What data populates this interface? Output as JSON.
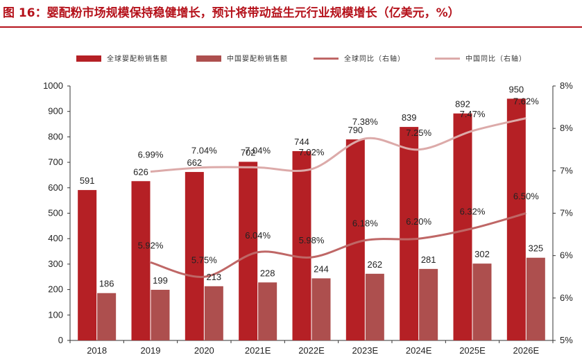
{
  "title": "图 16：婴配粉市场规模保持稳健增长，预计将带动益生元行业规模增长（亿美元，%）",
  "colors": {
    "title": "#b5121b",
    "global_sales": "#b52025",
    "china_sales": "#ad4f4e",
    "global_yoy": "#bf6766",
    "china_yoy": "#dcaaa9",
    "axis": "#333333"
  },
  "chart_data": {
    "type": "bar",
    "categories": [
      "2018",
      "2019",
      "2020",
      "2021E",
      "2022E",
      "2023E",
      "2024E",
      "2025E",
      "2026E"
    ],
    "series": [
      {
        "name": "全球婴配粉销售额",
        "type": "bar",
        "axis": "left",
        "values": [
          591,
          626,
          662,
          702,
          744,
          790,
          839,
          892,
          950
        ]
      },
      {
        "name": "中国婴配粉销售额",
        "type": "bar",
        "axis": "left",
        "values": [
          186,
          199,
          213,
          228,
          244,
          262,
          281,
          302,
          325
        ]
      },
      {
        "name": "全球同比（右轴）",
        "type": "line",
        "axis": "right",
        "values": [
          null,
          5.92,
          5.75,
          6.04,
          5.98,
          6.18,
          6.2,
          6.32,
          6.5
        ],
        "labels": [
          null,
          "5.92%",
          "5.75%",
          "6.04%",
          "5.98%",
          "6.18%",
          "6.20%",
          "6.32%",
          "6.50%"
        ]
      },
      {
        "name": "中国同比（右轴）",
        "type": "line",
        "axis": "right",
        "values": [
          null,
          6.99,
          7.04,
          7.04,
          7.02,
          7.38,
          7.25,
          7.47,
          7.62
        ],
        "labels": [
          null,
          "6.99%",
          "7.04%",
          "7.04%",
          "7.02%",
          "7.38%",
          "7.25%",
          "7.47%",
          "7.62%"
        ]
      }
    ],
    "left_axis": {
      "ylim": [
        0,
        1000
      ],
      "ticks": [
        "0",
        "100",
        "200",
        "300",
        "400",
        "500",
        "600",
        "700",
        "800",
        "900",
        "1000"
      ]
    },
    "right_axis": {
      "ylim": [
        5,
        8
      ],
      "ticks": [
        "5%",
        "6%",
        "6%",
        "7%",
        "7%",
        "8%",
        "8%"
      ]
    },
    "legend_position": "top",
    "grid": false
  }
}
